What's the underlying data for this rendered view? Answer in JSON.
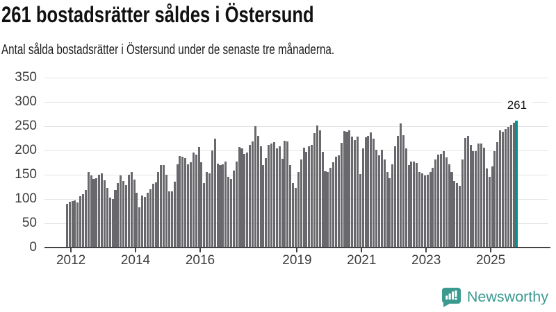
{
  "header": {
    "title": "261 bostadsrätter såldes i Östersund",
    "subtitle": "Antal sålda bostadsrätter i Östersund under de senaste tre månaderna."
  },
  "chart_data": {
    "type": "bar",
    "title": "261 bostadsrätter såldes i Östersund",
    "subtitle": "Antal sålda bostadsrätter i Östersund under de senaste tre månaderna.",
    "x_start": "2011-11",
    "x_end": "2025-10",
    "ylim": [
      0,
      350
    ],
    "yticks": [
      0,
      50,
      100,
      150,
      200,
      250,
      300,
      350
    ],
    "xticks": [
      "2012",
      "2014",
      "2016",
      "2019",
      "2021",
      "2023",
      "2025"
    ],
    "grid": true,
    "legend_position": "none",
    "bar_color": "#69696d",
    "highlight_color": "#00968f",
    "annotation": {
      "text": "261",
      "applies_to": "last-bar"
    },
    "values": [
      90,
      94,
      95,
      97,
      92,
      105,
      110,
      118,
      155,
      148,
      141,
      143,
      150,
      152,
      138,
      122,
      103,
      100,
      118,
      133,
      148,
      137,
      128,
      150,
      155,
      140,
      113,
      83,
      107,
      104,
      113,
      120,
      131,
      134,
      155,
      170,
      170,
      150,
      116,
      116,
      136,
      172,
      189,
      187,
      184,
      172,
      175,
      195,
      192,
      207,
      175,
      132,
      155,
      152,
      200,
      225,
      173,
      170,
      172,
      177,
      146,
      141,
      159,
      177,
      207,
      204,
      193,
      195,
      211,
      219,
      250,
      230,
      209,
      170,
      184,
      212,
      215,
      217,
      204,
      208,
      183,
      220,
      219,
      170,
      132,
      122,
      155,
      181,
      206,
      197,
      209,
      212,
      236,
      251,
      242,
      197,
      157,
      155,
      164,
      176,
      187,
      190,
      216,
      240,
      239,
      241,
      228,
      222,
      228,
      151,
      204,
      227,
      230,
      237,
      224,
      201,
      190,
      201,
      182,
      156,
      142,
      172,
      209,
      230,
      256,
      232,
      204,
      170,
      177,
      177,
      174,
      155,
      153,
      148,
      150,
      155,
      164,
      182,
      192,
      193,
      199,
      185,
      172,
      155,
      137,
      133,
      127,
      181,
      226,
      230,
      211,
      199,
      199,
      214,
      214,
      206,
      163,
      145,
      167,
      198,
      217,
      241,
      238,
      244,
      249,
      253,
      257,
      261
    ]
  },
  "branding": {
    "logo_text": "Newsworthy",
    "logo_icon": "bar-chart-speech-bubble-icon",
    "brand_color": "#3a9a90"
  },
  "colors": {
    "background": "#ffffff",
    "title_text": "#111111",
    "axis_text": "#3d3d3d",
    "gridline": "#e4e4e4",
    "axis_line": "#434343",
    "bar": "#69696d",
    "highlight_bar": "#00968f"
  }
}
